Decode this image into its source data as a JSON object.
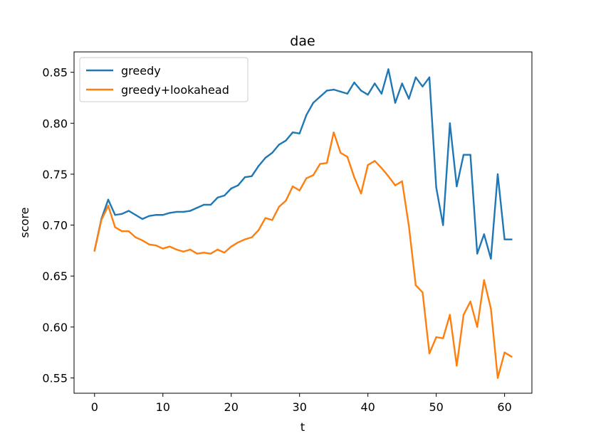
{
  "chart_data": {
    "type": "line",
    "title": "dae",
    "xlabel": "t",
    "ylabel": "score",
    "xlim": [
      -3,
      64
    ],
    "ylim": [
      0.535,
      0.87
    ],
    "xticks": [
      0,
      10,
      20,
      30,
      40,
      50,
      60
    ],
    "yticks": [
      0.55,
      0.6,
      0.65,
      0.7,
      0.75,
      0.8,
      0.85
    ],
    "xtick_labels": [
      "0",
      "10",
      "20",
      "30",
      "40",
      "50",
      "60"
    ],
    "ytick_labels": [
      "0.55",
      "0.60",
      "0.65",
      "0.70",
      "0.75",
      "0.80",
      "0.85"
    ],
    "grid": false,
    "legend_position": "top-left",
    "x": [
      0,
      1,
      2,
      3,
      4,
      5,
      6,
      7,
      8,
      9,
      10,
      11,
      12,
      13,
      14,
      15,
      16,
      17,
      18,
      19,
      20,
      21,
      22,
      23,
      24,
      25,
      26,
      27,
      28,
      29,
      30,
      31,
      32,
      33,
      34,
      35,
      36,
      37,
      38,
      39,
      40,
      41,
      42,
      43,
      44,
      45,
      46,
      47,
      48,
      49,
      50,
      51,
      52,
      53,
      54,
      55,
      56,
      57,
      58,
      59,
      60,
      61
    ],
    "series": [
      {
        "name": "greedy",
        "color": "#1f77b4",
        "values": [
          0.675,
          0.706,
          0.725,
          0.71,
          0.711,
          0.714,
          0.71,
          0.706,
          0.709,
          0.71,
          0.71,
          0.712,
          0.713,
          0.713,
          0.714,
          0.717,
          0.72,
          0.72,
          0.727,
          0.729,
          0.736,
          0.739,
          0.747,
          0.748,
          0.758,
          0.766,
          0.771,
          0.779,
          0.783,
          0.791,
          0.79,
          0.808,
          0.82,
          0.826,
          0.832,
          0.833,
          0.831,
          0.829,
          0.84,
          0.832,
          0.828,
          0.839,
          0.829,
          0.853,
          0.82,
          0.839,
          0.824,
          0.845,
          0.836,
          0.845,
          0.737,
          0.7,
          0.8,
          0.738,
          0.769,
          0.769,
          0.672,
          0.691,
          0.667,
          0.75,
          0.686,
          0.686
        ]
      },
      {
        "name": "greedy+lookahead",
        "color": "#ff7f0e",
        "values": [
          0.675,
          0.705,
          0.719,
          0.698,
          0.694,
          0.694,
          0.688,
          0.685,
          0.681,
          0.68,
          0.677,
          0.679,
          0.676,
          0.674,
          0.676,
          0.672,
          0.673,
          0.672,
          0.676,
          0.673,
          0.679,
          0.683,
          0.686,
          0.688,
          0.695,
          0.707,
          0.705,
          0.718,
          0.724,
          0.738,
          0.734,
          0.746,
          0.749,
          0.76,
          0.761,
          0.791,
          0.771,
          0.767,
          0.747,
          0.731,
          0.759,
          0.763,
          0.756,
          0.748,
          0.739,
          0.743,
          0.699,
          0.641,
          0.634,
          0.574,
          0.59,
          0.589,
          0.612,
          0.562,
          0.612,
          0.625,
          0.6,
          0.646,
          0.618,
          0.55,
          0.575,
          0.571
        ]
      }
    ]
  }
}
